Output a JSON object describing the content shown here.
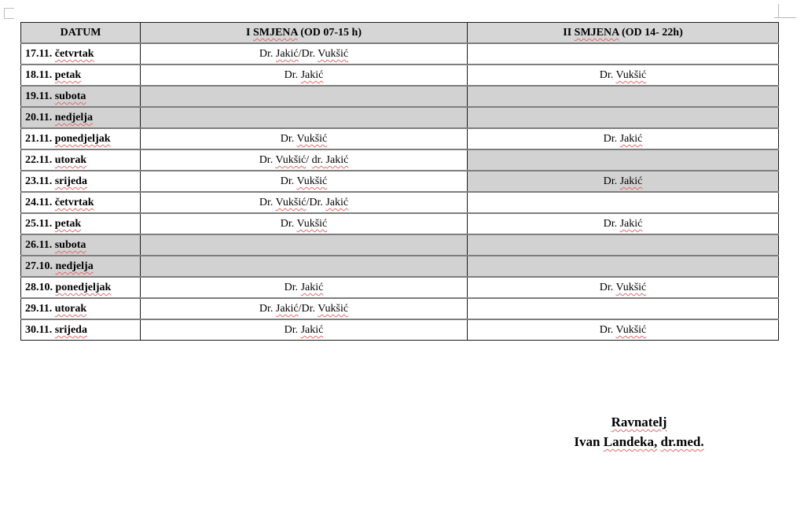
{
  "colors": {
    "header_bg": "#d6d6d6",
    "shaded_bg": "#d2d2d2",
    "border_dark": "#1a1a1a",
    "border_gray": "#7e7e7e",
    "squiggle_red": "#e06a6a"
  },
  "table": {
    "headers": [
      {
        "name": "datum",
        "segments": [
          {
            "t": "DATUM",
            "sq": false
          }
        ]
      },
      {
        "name": "shift-1",
        "segments": [
          {
            "t": "I ",
            "sq": false
          },
          {
            "t": "SMJENA",
            "sq": true
          },
          {
            "t": " (OD 07-15 h)",
            "sq": false
          }
        ]
      },
      {
        "name": "shift-2",
        "segments": [
          {
            "t": "II ",
            "sq": false
          },
          {
            "t": "SMJENA",
            "sq": true
          },
          {
            "t": " (OD 14- 22h)",
            "sq": false
          }
        ]
      }
    ],
    "rows": [
      {
        "date": "17.11.",
        "day": "četvrtak",
        "shade": "none",
        "shift1": [
          {
            "t": "Dr. ",
            "sq": false
          },
          {
            "t": "Jakić",
            "sq": true
          },
          {
            "t": "/Dr. ",
            "sq": false
          },
          {
            "t": "Vukšić",
            "sq": true
          }
        ],
        "shift2": []
      },
      {
        "date": "18.11.",
        "day": "petak",
        "shade": "none",
        "shift1": [
          {
            "t": "Dr. ",
            "sq": false
          },
          {
            "t": "Jakić",
            "sq": true
          }
        ],
        "shift2": [
          {
            "t": "Dr. ",
            "sq": false
          },
          {
            "t": "Vukšić",
            "sq": true
          }
        ]
      },
      {
        "date": "19.11.",
        "day": "subota",
        "shade": "full",
        "shift1": [],
        "shift2": []
      },
      {
        "date": "20.11.",
        "day": "nedjelja",
        "shade": "full",
        "shift1": [],
        "shift2": []
      },
      {
        "date": "21.11.",
        "day": "ponedjeljak",
        "shade": "none",
        "shift1": [
          {
            "t": "Dr. ",
            "sq": false
          },
          {
            "t": "Vukšić",
            "sq": true
          }
        ],
        "shift2": [
          {
            "t": "Dr. ",
            "sq": false
          },
          {
            "t": "Jakić",
            "sq": true
          }
        ]
      },
      {
        "date": "22.11.",
        "day": "utorak",
        "shade": "shift2",
        "shift1": [
          {
            "t": "Dr. ",
            "sq": false
          },
          {
            "t": "Vukšić",
            "sq": true
          },
          {
            "t": "/ ",
            "sq": false
          },
          {
            "t": "dr. ",
            "sq": true
          },
          {
            "t": "Jakić",
            "sq": true
          }
        ],
        "shift2": []
      },
      {
        "date": "23.11.",
        "day": "srijeda",
        "shade": "shift2",
        "shift1": [
          {
            "t": "Dr. ",
            "sq": false
          },
          {
            "t": "Vukšić",
            "sq": true
          }
        ],
        "shift2": [
          {
            "t": "Dr. ",
            "sq": false
          },
          {
            "t": "Jakić",
            "sq": true
          }
        ]
      },
      {
        "date": "24.11.",
        "day": "četvrtak",
        "shade": "none",
        "shift1": [
          {
            "t": "Dr. ",
            "sq": false
          },
          {
            "t": "Vukšić",
            "sq": true
          },
          {
            "t": "/Dr. ",
            "sq": false
          },
          {
            "t": "Jakić",
            "sq": true
          }
        ],
        "shift2": []
      },
      {
        "date": "25.11.",
        "day": "petak",
        "shade": "none",
        "shift1": [
          {
            "t": "Dr. ",
            "sq": false
          },
          {
            "t": "Vukšić",
            "sq": true
          }
        ],
        "shift2": [
          {
            "t": "Dr. ",
            "sq": false
          },
          {
            "t": "Jakić",
            "sq": true
          }
        ]
      },
      {
        "date": "26.11.",
        "day": "subota",
        "shade": "full",
        "shift1": [],
        "shift2": []
      },
      {
        "date": "27.10.",
        "day": "nedjelja",
        "shade": "full",
        "shift1": [],
        "shift2": []
      },
      {
        "date": "28.10.",
        "day": "ponedjeljak",
        "shade": "none",
        "shift1": [
          {
            "t": "Dr. ",
            "sq": false
          },
          {
            "t": "Jakić",
            "sq": true
          }
        ],
        "shift2": [
          {
            "t": "Dr. ",
            "sq": false
          },
          {
            "t": "Vukšić",
            "sq": true
          }
        ]
      },
      {
        "date": "29.11.",
        "day": "utorak",
        "shade": "none",
        "shift1": [
          {
            "t": "Dr. ",
            "sq": false
          },
          {
            "t": "Jakić",
            "sq": true
          },
          {
            "t": "/Dr. ",
            "sq": false
          },
          {
            "t": "Vukšić",
            "sq": true
          }
        ],
        "shift2": []
      },
      {
        "date": "30.11.",
        "day": "srijeda",
        "shade": "none",
        "shift1": [
          {
            "t": "Dr. ",
            "sq": false
          },
          {
            "t": "Jakić",
            "sq": true
          }
        ],
        "shift2": [
          {
            "t": "Dr. ",
            "sq": false
          },
          {
            "t": "Vukšić",
            "sq": true
          }
        ]
      }
    ]
  },
  "signature": {
    "line1": [
      {
        "t": "Ravnatelj",
        "sq": true
      }
    ],
    "line2": [
      {
        "t": "Ivan ",
        "sq": false
      },
      {
        "t": "Landeka,",
        "sq": true
      },
      {
        "t": " ",
        "sq": false
      },
      {
        "t": "dr.med.",
        "sq": true
      }
    ]
  }
}
